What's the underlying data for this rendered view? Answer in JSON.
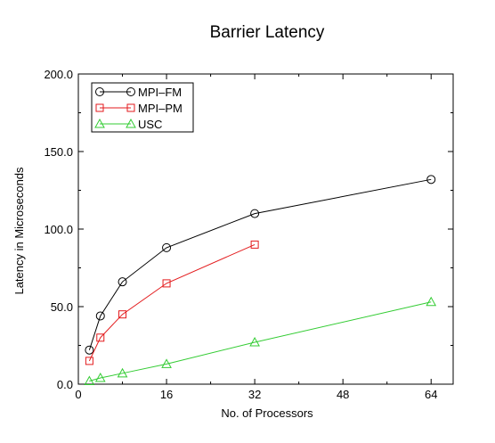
{
  "chart_data": {
    "type": "line",
    "title": "Barrier Latency",
    "xlabel": "No. of Processors",
    "ylabel": "Latency in Microseconds",
    "xlim": [
      0,
      68
    ],
    "ylim": [
      0,
      200
    ],
    "xticks": [
      0,
      16,
      32,
      48,
      64
    ],
    "xtick_labels": [
      "0",
      "16",
      "32",
      "48",
      "64"
    ],
    "yticks": [
      0,
      50,
      100,
      150,
      200
    ],
    "ytick_labels": [
      "0.0",
      "50.0",
      "100.0",
      "150.0",
      "200.0"
    ],
    "grid": false,
    "legend_position": "top-left",
    "series": [
      {
        "name": "MPI–FM",
        "marker": "circle",
        "color": "#000000",
        "x": [
          2,
          4,
          8,
          16,
          32,
          64
        ],
        "y": [
          22,
          44,
          66,
          88,
          110,
          132
        ]
      },
      {
        "name": "MPI–PM",
        "marker": "square",
        "color": "#e31a1c",
        "x": [
          2,
          4,
          8,
          16,
          32
        ],
        "y": [
          15,
          30,
          45,
          65,
          90
        ]
      },
      {
        "name": "USC",
        "marker": "triangle",
        "color": "#33cc33",
        "x": [
          2,
          4,
          8,
          16,
          32,
          64
        ],
        "y": [
          2,
          4,
          7,
          13,
          27,
          53
        ]
      }
    ]
  }
}
